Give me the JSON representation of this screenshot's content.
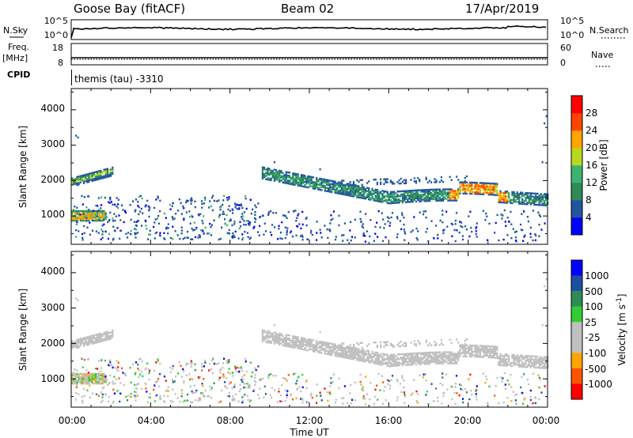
{
  "header": {
    "station": "Goose Bay (fitACF)",
    "beam": "Beam 02",
    "date": "17/Apr/2019"
  },
  "strips": {
    "nsky_label": "N.Sky",
    "nsky_ticks": [
      "10^5",
      "10^0"
    ],
    "nsearch_label": "N.Search",
    "nsearch_ticks": [
      "10^5",
      "10^0"
    ],
    "freq_label": "Freq.",
    "freq_unit": "[MHz]",
    "freq_ticks": [
      "18",
      "8"
    ],
    "nave_label": "Nave",
    "nave_ticks": [
      "60",
      "0"
    ],
    "cpid_label": "CPID",
    "cpid_text": "themis (tau) -3310"
  },
  "colors": {
    "power_scale": [
      "#0000ff",
      "#2255a0",
      "#2e8b57",
      "#3cb371",
      "#b8d820",
      "#ffa500",
      "#ff4500",
      "#ff0000"
    ],
    "velocity_scale": [
      "#0000ff",
      "#1f4fa0",
      "#2e8b57",
      "#33cc33",
      "#c0c0c0",
      "#c0c0c0",
      "#ffa500",
      "#ff5500",
      "#ff0000"
    ],
    "ground_scatter": "#c0c0c0"
  },
  "chart_data": [
    {
      "type": "heatmap",
      "name": "power",
      "ylabel": "Slant Range [km]",
      "ylim": [
        200,
        4600
      ],
      "yticks": [
        "1000",
        "2000",
        "3000",
        "4000"
      ],
      "xlim": [
        0,
        24
      ],
      "colorbar": {
        "label": "Power [dB]",
        "range": [
          0,
          32
        ],
        "ticks": [
          "4",
          "8",
          "12",
          "16",
          "20",
          "24",
          "28"
        ]
      }
    },
    {
      "type": "heatmap",
      "name": "velocity",
      "ylabel": "Slant Range [km]",
      "ylim": [
        200,
        4600
      ],
      "yticks": [
        "1000",
        "2000",
        "3000",
        "4000"
      ],
      "xlim": [
        0,
        24
      ],
      "xlabel": "Time UT",
      "xticks": [
        "00:00",
        "04:00",
        "08:00",
        "12:00",
        "16:00",
        "20:00",
        "00:00"
      ],
      "colorbar": {
        "label": "Velocity [m s",
        "label_sup": "-1",
        "ticks": [
          "1000",
          "500",
          "100",
          "25",
          "-25",
          "-100",
          "-500",
          "-1000"
        ]
      },
      "features": [
        {
          "kind": "band",
          "t_start": 0,
          "t_end": 2,
          "range_center": 2000,
          "halfwidth": 100
        },
        {
          "kind": "band",
          "t_start": 9.5,
          "t_end": 24,
          "range_center": 1600,
          "halfwidth": 120
        },
        {
          "kind": "band",
          "t_start": 0,
          "t_end": 2,
          "range_center": 1000,
          "halfwidth": 120
        },
        {
          "kind": "scatter",
          "t_start": 0,
          "t_end": 9.5,
          "range_min": 400,
          "range_max": 1500
        }
      ]
    }
  ]
}
